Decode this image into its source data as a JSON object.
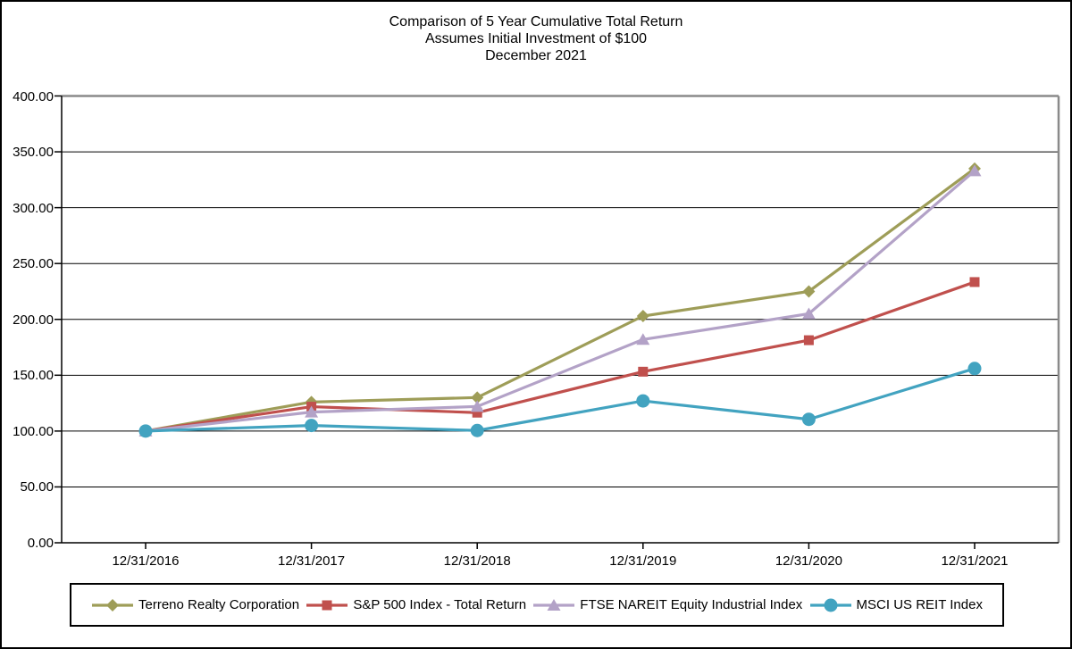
{
  "chart_data": {
    "type": "line",
    "title_lines": [
      "Comparison of 5 Year Cumulative Total Return",
      "Assumes Initial Investment of $100",
      "December 2021"
    ],
    "categories": [
      "12/31/2016",
      "12/31/2017",
      "12/31/2018",
      "12/31/2019",
      "12/31/2020",
      "12/31/2021"
    ],
    "series": [
      {
        "name": "Terreno Realty Corporation",
        "marker": "diamond",
        "color": "#9E9D58",
        "values": [
          100.0,
          126.0,
          130.0,
          203.0,
          225.0,
          335.0
        ]
      },
      {
        "name": "S&P 500 Index - Total Return",
        "marker": "square",
        "color": "#C0504D",
        "values": [
          100.0,
          121.83,
          116.49,
          153.17,
          181.35,
          233.41
        ]
      },
      {
        "name": "FTSE NAREIT Equity Industrial Index",
        "marker": "triangle",
        "color": "#B3A2C7",
        "values": [
          100.0,
          117.0,
          122.0,
          182.0,
          205.0,
          333.0
        ]
      },
      {
        "name": "MSCI US REIT Index",
        "marker": "circle",
        "color": "#42A3C0",
        "values": [
          100.0,
          105.0,
          100.5,
          127.0,
          110.5,
          156.0
        ]
      }
    ],
    "y_ticks": [
      "400.00",
      "350.00",
      "300.00",
      "250.00",
      "200.00",
      "150.00",
      "100.00",
      "50.00",
      "0.00"
    ],
    "ylim": [
      0,
      400
    ],
    "y_step": 50,
    "grid": true,
    "legend_position": "bottom",
    "plot_border_color": "#8a8a8a",
    "gridline_color": "#000000"
  }
}
